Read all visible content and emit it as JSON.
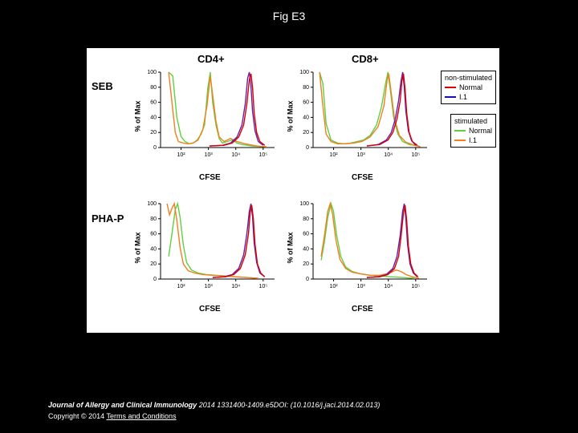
{
  "title": "Fig E3",
  "rows": {
    "seb": "SEB",
    "phap": "PHA-P"
  },
  "cols": {
    "cd4": "CD4+",
    "cd8": "CD8+"
  },
  "axes": {
    "y_label": "% of Max",
    "x_label": "CFSE"
  },
  "y_ticks": [
    0,
    20,
    40,
    60,
    80,
    100
  ],
  "x_ticks": [
    "10²",
    "10³",
    "10⁴",
    "10⁵"
  ],
  "legend_nonstim": {
    "title": "non-stimulated",
    "normal": {
      "label": "Normal",
      "color": "#d90000"
    },
    "li": {
      "label": "I.1",
      "color": "#1010c0"
    }
  },
  "legend_stim": {
    "title": "stimulated",
    "normal": {
      "label": "Normal",
      "color": "#60d040"
    },
    "li": {
      "label": "I.1",
      "color": "#f08020"
    }
  },
  "colors": {
    "bg": "#000000",
    "panel_bg": "#ffffff",
    "axis": "#000000"
  },
  "panels": {
    "seb_cd4": {
      "curves": [
        {
          "color": "#60d040",
          "pts": [
            [
              10,
              100
            ],
            [
              15,
              95
            ],
            [
              20,
              40
            ],
            [
              25,
              15
            ],
            [
              30,
              8
            ],
            [
              35,
              5
            ],
            [
              40,
              6
            ],
            [
              45,
              10
            ],
            [
              50,
              18
            ],
            [
              54,
              30
            ],
            [
              58,
              78
            ],
            [
              61,
              100
            ],
            [
              64,
              60
            ],
            [
              68,
              30
            ],
            [
              72,
              12
            ],
            [
              76,
              6
            ],
            [
              82,
              8
            ],
            [
              88,
              10
            ],
            [
              94,
              6
            ],
            [
              100,
              4
            ],
            [
              112,
              2
            ],
            [
              130,
              1
            ]
          ]
        },
        {
          "color": "#f08020",
          "pts": [
            [
              10,
              100
            ],
            [
              14,
              60
            ],
            [
              18,
              20
            ],
            [
              22,
              8
            ],
            [
              28,
              6
            ],
            [
              34,
              5
            ],
            [
              40,
              6
            ],
            [
              46,
              10
            ],
            [
              52,
              24
            ],
            [
              57,
              55
            ],
            [
              61,
              95
            ],
            [
              64,
              70
            ],
            [
              68,
              35
            ],
            [
              72,
              14
            ],
            [
              78,
              8
            ],
            [
              86,
              12
            ],
            [
              94,
              8
            ],
            [
              104,
              5
            ],
            [
              118,
              2
            ],
            [
              130,
              1
            ]
          ]
        },
        {
          "color": "#6020b0",
          "pts": [
            [
              60,
              2
            ],
            [
              76,
              3
            ],
            [
              86,
              6
            ],
            [
              94,
              14
            ],
            [
              100,
              30
            ],
            [
              104,
              58
            ],
            [
              107,
              92
            ],
            [
              109,
              100
            ],
            [
              111,
              82
            ],
            [
              113,
              48
            ],
            [
              116,
              22
            ],
            [
              120,
              8
            ],
            [
              126,
              3
            ]
          ]
        },
        {
          "color": "#d90000",
          "pts": [
            [
              60,
              2
            ],
            [
              78,
              3
            ],
            [
              88,
              6
            ],
            [
              96,
              14
            ],
            [
              102,
              30
            ],
            [
              106,
              58
            ],
            [
              109,
              90
            ],
            [
              111,
              98
            ],
            [
              113,
              80
            ],
            [
              115,
              46
            ],
            [
              118,
              20
            ],
            [
              122,
              8
            ],
            [
              128,
              3
            ]
          ]
        }
      ]
    },
    "seb_cd8": {
      "curves": [
        {
          "color": "#60d040",
          "pts": [
            [
              8,
              100
            ],
            [
              12,
              85
            ],
            [
              16,
              32
            ],
            [
              22,
              10
            ],
            [
              30,
              6
            ],
            [
              38,
              5
            ],
            [
              46,
              6
            ],
            [
              54,
              8
            ],
            [
              62,
              10
            ],
            [
              70,
              16
            ],
            [
              78,
              30
            ],
            [
              84,
              54
            ],
            [
              89,
              85
            ],
            [
              92,
              100
            ],
            [
              95,
              75
            ],
            [
              99,
              40
            ],
            [
              104,
              18
            ],
            [
              110,
              8
            ],
            [
              118,
              4
            ],
            [
              130,
              2
            ]
          ]
        },
        {
          "color": "#f08020",
          "pts": [
            [
              8,
              100
            ],
            [
              12,
              55
            ],
            [
              16,
              18
            ],
            [
              22,
              8
            ],
            [
              30,
              5
            ],
            [
              40,
              5
            ],
            [
              50,
              6
            ],
            [
              60,
              8
            ],
            [
              70,
              14
            ],
            [
              80,
              28
            ],
            [
              87,
              55
            ],
            [
              91,
              90
            ],
            [
              93,
              98
            ],
            [
              96,
              72
            ],
            [
              100,
              38
            ],
            [
              106,
              16
            ],
            [
              114,
              7
            ],
            [
              124,
              3
            ],
            [
              132,
              1
            ]
          ]
        },
        {
          "color": "#6020b0",
          "pts": [
            [
              66,
              2
            ],
            [
              80,
              4
            ],
            [
              90,
              10
            ],
            [
              96,
              20
            ],
            [
              101,
              38
            ],
            [
              105,
              62
            ],
            [
              108,
              88
            ],
            [
              110,
              100
            ],
            [
              112,
              80
            ],
            [
              114,
              48
            ],
            [
              117,
              22
            ],
            [
              121,
              9
            ],
            [
              126,
              3
            ]
          ]
        },
        {
          "color": "#d90000",
          "pts": [
            [
              66,
              2
            ],
            [
              82,
              4
            ],
            [
              92,
              10
            ],
            [
              98,
              20
            ],
            [
              103,
              38
            ],
            [
              107,
              62
            ],
            [
              109,
              88
            ],
            [
              111,
              98
            ],
            [
              113,
              78
            ],
            [
              115,
              46
            ],
            [
              118,
              20
            ],
            [
              122,
              8
            ],
            [
              128,
              3
            ]
          ]
        }
      ]
    },
    "phap_cd4": {
      "curves": [
        {
          "color": "#60d040",
          "pts": [
            [
              10,
              30
            ],
            [
              14,
              60
            ],
            [
              18,
              92
            ],
            [
              21,
              100
            ],
            [
              24,
              82
            ],
            [
              28,
              45
            ],
            [
              32,
              22
            ],
            [
              38,
              12
            ],
            [
              46,
              8
            ],
            [
              56,
              6
            ],
            [
              68,
              5
            ],
            [
              80,
              4
            ],
            [
              92,
              3
            ],
            [
              106,
              2
            ],
            [
              120,
              1
            ]
          ]
        },
        {
          "color": "#f08020",
          "pts": [
            [
              8,
              100
            ],
            [
              11,
              85
            ],
            [
              14,
              94
            ],
            [
              17,
              100
            ],
            [
              20,
              78
            ],
            [
              24,
              42
            ],
            [
              28,
              20
            ],
            [
              34,
              11
            ],
            [
              42,
              8
            ],
            [
              52,
              6
            ],
            [
              64,
              5
            ],
            [
              78,
              4
            ],
            [
              92,
              3
            ],
            [
              106,
              2
            ],
            [
              120,
              1
            ]
          ]
        },
        {
          "color": "#6020b0",
          "pts": [
            [
              64,
              2
            ],
            [
              78,
              3
            ],
            [
              88,
              6
            ],
            [
              96,
              14
            ],
            [
              102,
              32
            ],
            [
              106,
              60
            ],
            [
              109,
              90
            ],
            [
              111,
              100
            ],
            [
              113,
              82
            ],
            [
              115,
              48
            ],
            [
              118,
              22
            ],
            [
              122,
              8
            ],
            [
              128,
              3
            ]
          ]
        },
        {
          "color": "#d90000",
          "pts": [
            [
              64,
              2
            ],
            [
              80,
              3
            ],
            [
              90,
              6
            ],
            [
              98,
              14
            ],
            [
              104,
              32
            ],
            [
              108,
              60
            ],
            [
              110,
              88
            ],
            [
              112,
              98
            ],
            [
              114,
              80
            ],
            [
              116,
              46
            ],
            [
              119,
              20
            ],
            [
              123,
              8
            ],
            [
              128,
              3
            ]
          ]
        }
      ]
    },
    "phap_cd8": {
      "curves": [
        {
          "color": "#60d040",
          "pts": [
            [
              10,
              25
            ],
            [
              14,
              50
            ],
            [
              18,
              82
            ],
            [
              22,
              100
            ],
            [
              25,
              90
            ],
            [
              29,
              58
            ],
            [
              34,
              30
            ],
            [
              40,
              16
            ],
            [
              48,
              10
            ],
            [
              58,
              7
            ],
            [
              70,
              5
            ],
            [
              82,
              4
            ],
            [
              96,
              3
            ],
            [
              110,
              2
            ],
            [
              124,
              1
            ]
          ]
        },
        {
          "color": "#f08020",
          "pts": [
            [
              10,
              30
            ],
            [
              14,
              58
            ],
            [
              18,
              90
            ],
            [
              21,
              100
            ],
            [
              24,
              86
            ],
            [
              28,
              52
            ],
            [
              33,
              26
            ],
            [
              40,
              14
            ],
            [
              48,
              9
            ],
            [
              58,
              7
            ],
            [
              70,
              5
            ],
            [
              82,
              5
            ],
            [
              94,
              8
            ],
            [
              102,
              12
            ],
            [
              108,
              10
            ],
            [
              114,
              6
            ],
            [
              122,
              3
            ],
            [
              130,
              1
            ]
          ]
        },
        {
          "color": "#6020b0",
          "pts": [
            [
              66,
              2
            ],
            [
              80,
              3
            ],
            [
              90,
              6
            ],
            [
              98,
              14
            ],
            [
              103,
              30
            ],
            [
              107,
              58
            ],
            [
              110,
              90
            ],
            [
              112,
              100
            ],
            [
              114,
              80
            ],
            [
              116,
              46
            ],
            [
              119,
              20
            ],
            [
              123,
              8
            ],
            [
              128,
              3
            ]
          ]
        },
        {
          "color": "#d90000",
          "pts": [
            [
              66,
              2
            ],
            [
              82,
              3
            ],
            [
              92,
              6
            ],
            [
              100,
              14
            ],
            [
              105,
              30
            ],
            [
              108,
              56
            ],
            [
              111,
              88
            ],
            [
              113,
              98
            ],
            [
              115,
              78
            ],
            [
              117,
              44
            ],
            [
              120,
              20
            ],
            [
              124,
              8
            ],
            [
              129,
              3
            ]
          ]
        }
      ]
    }
  },
  "citation": {
    "journal": "Journal of Allergy and Clinical Immunology",
    "details": " 2014 1331400-1409.e5DOI: (10.1016/j.jaci.2014.02.013)"
  },
  "copyright": {
    "text": "Copyright © 2014 ",
    "link": "Terms and Conditions"
  }
}
